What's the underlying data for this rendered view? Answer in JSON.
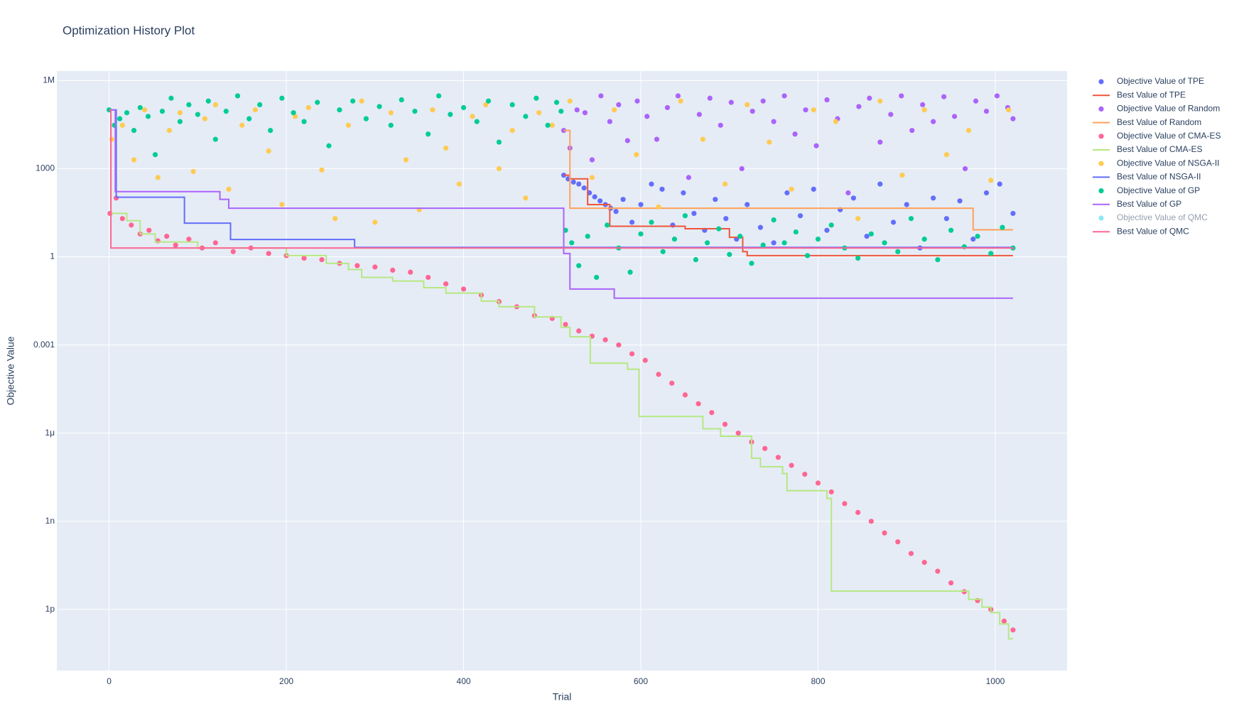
{
  "chart_data": {
    "type": "scatter",
    "title": "Optimization History Plot",
    "x_label": "Trial",
    "y_label": "Objective Value",
    "log_y": true,
    "grid": true,
    "legend": "right",
    "xlim": [
      -59,
      1081
    ],
    "xticks": [
      0,
      200,
      400,
      600,
      800,
      1000
    ],
    "ylim": [
      8.3e-15,
      2100000
    ],
    "yticks": [
      {
        "value": 1e-12,
        "label": "1p"
      },
      {
        "value": 1e-09,
        "label": "1n"
      },
      {
        "value": 1e-06,
        "label": "1μ"
      },
      0.001,
      1,
      1000,
      {
        "value": 1000000,
        "label": "1M"
      }
    ],
    "series": [
      {
        "name": "Objective Value of TPE",
        "mode": "markers",
        "color": "#636efa",
        "x": [
          513,
          518,
          524,
          530,
          536,
          542,
          548,
          554,
          560,
          566,
          572,
          580,
          590,
          600,
          612,
          624,
          636,
          648,
          660,
          672,
          684,
          696,
          708,
          720,
          735,
          750,
          765,
          780,
          795,
          810,
          825,
          840,
          855,
          870,
          885,
          900,
          915,
          930,
          945,
          960,
          975,
          990,
          1005,
          1020
        ],
        "values": [
          600,
          450,
          350,
          300,
          220,
          150,
          110,
          80,
          60,
          45,
          35,
          90,
          15,
          60,
          300,
          200,
          12,
          150,
          30,
          8,
          90,
          20,
          4,
          60,
          10,
          3,
          150,
          25,
          200,
          8,
          40,
          100,
          5,
          300,
          15,
          60,
          2,
          100,
          20,
          80,
          4,
          150,
          300,
          30
        ]
      },
      {
        "name": "Best Value of TPE",
        "mode": "lines",
        "color": "#ef553b",
        "x": [
          513,
          520,
          540,
          565,
          650,
          700,
          715,
          720,
          1020
        ],
        "values": [
          600,
          450,
          60,
          11,
          9,
          4.6,
          1.5,
          1.1,
          1.1
        ]
      },
      {
        "name": "Objective Value of Random",
        "mode": "markers",
        "color": "#ab63fa",
        "x": [
          513,
          520,
          528,
          537,
          545,
          555,
          565,
          575,
          585,
          596,
          607,
          618,
          630,
          642,
          654,
          666,
          678,
          690,
          702,
          714,
          726,
          738,
          750,
          762,
          774,
          786,
          798,
          810,
          822,
          834,
          846,
          858,
          870,
          882,
          894,
          906,
          918,
          930,
          942,
          954,
          966,
          978,
          990,
          1002,
          1014,
          1020
        ],
        "values": [
          20000,
          5000,
          100000,
          80000,
          2000,
          300000,
          40000,
          150000,
          9000,
          200000,
          60000,
          10000,
          120000,
          300000,
          500,
          70000,
          250000,
          30000,
          180000,
          1000,
          90000,
          200000,
          40000,
          300000,
          15000,
          100000,
          6000,
          220000,
          50000,
          150,
          130000,
          250000,
          8000,
          70000,
          300000,
          20000,
          150000,
          40000,
          280000,
          60000,
          1000,
          200000,
          90000,
          300000,
          120000,
          50000
        ]
      },
      {
        "name": "Best Value of Random",
        "mode": "lines",
        "color": "#ffa15a",
        "x": [
          513,
          520,
          975,
          1020
        ],
        "values": [
          20000,
          45,
          8.3,
          8.3
        ]
      },
      {
        "name": "Objective Value of CMA-ES",
        "mode": "markers",
        "color": "#ff6692",
        "x": [
          1,
          8,
          15,
          25,
          35,
          45,
          55,
          65,
          75,
          90,
          105,
          120,
          140,
          160,
          180,
          200,
          220,
          240,
          260,
          280,
          300,
          320,
          340,
          360,
          380,
          400,
          420,
          440,
          460,
          480,
          500,
          515,
          530,
          545,
          560,
          575,
          590,
          605,
          620,
          635,
          650,
          665,
          680,
          695,
          710,
          725,
          740,
          755,
          770,
          785,
          800,
          815,
          830,
          845,
          860,
          875,
          890,
          905,
          920,
          935,
          950,
          965,
          980,
          995,
          1010,
          1020
        ],
        "values": [
          30,
          100,
          20,
          12,
          6,
          8,
          3.5,
          5,
          2.5,
          4,
          2,
          3,
          1.5,
          2,
          1.3,
          1.1,
          0.9,
          0.8,
          0.6,
          0.5,
          0.45,
          0.35,
          0.3,
          0.2,
          0.12,
          0.08,
          0.05,
          0.03,
          0.02,
          0.01,
          0.008,
          0.005,
          0.003,
          0.002,
          0.0015,
          0.001,
          0.0005,
          0.0003,
          0.0001,
          5e-05,
          2e-05,
          1e-05,
          5e-06,
          2e-06,
          1e-06,
          5e-07,
          3e-07,
          1.5e-07,
          8e-08,
          4e-08,
          2e-08,
          1e-08,
          4e-09,
          2e-09,
          1e-09,
          4e-10,
          2e-10,
          8e-11,
          4e-11,
          2e-11,
          8e-12,
          4e-12,
          2e-12,
          1e-12,
          4e-13,
          2e-13
        ]
      },
      {
        "name": "Best Value of CMA-ES",
        "mode": "lines",
        "color": "#b6e880",
        "x": [
          0,
          2,
          20,
          35,
          52,
          100,
          200,
          245,
          270,
          285,
          320,
          355,
          380,
          420,
          440,
          480,
          510,
          520,
          543,
          585,
          598,
          670,
          690,
          725,
          735,
          760,
          765,
          810,
          815,
          970,
          985,
          995,
          1005,
          1015,
          1020
        ],
        "values": [
          100000,
          30,
          17,
          6,
          3.2,
          2,
          1.1,
          0.6,
          0.37,
          0.2,
          0.15,
          0.089,
          0.058,
          0.031,
          0.02,
          0.009,
          0.004,
          0.0019,
          0.00024,
          0.00015,
          3.7e-06,
          1.4e-06,
          7.8e-07,
          1.4e-07,
          7.2e-08,
          4.2e-08,
          1.1e-08,
          6e-09,
          4.2e-12,
          2.2e-12,
          1.2e-12,
          7.8e-13,
          3.2e-13,
          1e-13,
          1e-13
        ]
      },
      {
        "name": "Objective Value of NSGA-II",
        "mode": "markers",
        "color": "#fecb52",
        "x": [
          3,
          15,
          28,
          40,
          55,
          68,
          80,
          95,
          108,
          120,
          135,
          150,
          165,
          180,
          195,
          210,
          225,
          240,
          255,
          270,
          285,
          300,
          318,
          335,
          350,
          365,
          380,
          395,
          410,
          425,
          440,
          455,
          470,
          485,
          500,
          520,
          545,
          570,
          595,
          620,
          645,
          670,
          695,
          720,
          745,
          770,
          795,
          820,
          845,
          870,
          895,
          920,
          945,
          970,
          995,
          1015
        ],
        "values": [
          10000,
          30000,
          2000,
          100000,
          500,
          20000,
          80000,
          800,
          50000,
          150000,
          200,
          30000,
          100000,
          4000,
          60,
          60000,
          120000,
          900,
          20,
          30000,
          200000,
          15,
          80000,
          2000,
          40,
          100000,
          5000,
          300,
          60000,
          150000,
          1000,
          20000,
          100,
          80000,
          30000,
          200000,
          500,
          100000,
          3000,
          50,
          200000,
          10000,
          300,
          150000,
          8000,
          200,
          100000,
          40000,
          20,
          200000,
          600,
          100000,
          3000,
          20000,
          400,
          100000
        ]
      },
      {
        "name": "Best Value of NSGA-II",
        "mode": "lines",
        "color": "#636efa",
        "x": [
          0,
          8,
          85,
          137,
          277,
          1020
        ],
        "values": [
          100000,
          107,
          14,
          3.9,
          2.1,
          2.1
        ]
      },
      {
        "name": "Objective Value of GP",
        "mode": "markers",
        "color": "#00cc96",
        "x": [
          0,
          6,
          12,
          20,
          28,
          35,
          44,
          52,
          60,
          70,
          80,
          90,
          100,
          112,
          120,
          132,
          145,
          158,
          170,
          182,
          195,
          208,
          220,
          235,
          248,
          260,
          275,
          290,
          305,
          318,
          330,
          345,
          360,
          372,
          385,
          400,
          415,
          428,
          440,
          455,
          470,
          482,
          495,
          505,
          510,
          515,
          522,
          530,
          540,
          550,
          562,
          575,
          588,
          600,
          612,
          625,
          638,
          650,
          662,
          675,
          688,
          700,
          712,
          725,
          738,
          750,
          762,
          775,
          788,
          800,
          815,
          830,
          845,
          860,
          875,
          890,
          905,
          920,
          935,
          950,
          965,
          980,
          995,
          1008,
          1020
        ],
        "values": [
          100000,
          30000,
          50000,
          80000,
          20000,
          120000,
          60000,
          3000,
          90000,
          250000,
          40000,
          150000,
          70000,
          200000,
          10000,
          90000,
          300000,
          50000,
          150000,
          20000,
          250000,
          80000,
          40000,
          180000,
          6000,
          100000,
          200000,
          50000,
          130000,
          30000,
          220000,
          90000,
          15000,
          300000,
          70000,
          120000,
          40000,
          200000,
          8000,
          150000,
          60000,
          250000,
          30000,
          180000,
          90000,
          8,
          3,
          0.5,
          5,
          0.2,
          12,
          2,
          0.3,
          6,
          15,
          1.5,
          4,
          25,
          0.8,
          3,
          9,
          1.2,
          5,
          0.6,
          2.5,
          18,
          3,
          7,
          1.1,
          4,
          12,
          2,
          0.9,
          6,
          3,
          1.5,
          20,
          4,
          0.8,
          8,
          2.2,
          5,
          1.3,
          10,
          2
        ]
      },
      {
        "name": "Best Value of GP",
        "mode": "lines",
        "color": "#ab63fa",
        "x": [
          0,
          7,
          125,
          135,
          513,
          520,
          570,
          1020
        ],
        "values": [
          100000,
          165,
          90,
          45,
          1.3,
          0.08,
          0.039,
          0.039
        ]
      },
      {
        "name": "Objective Value of QMC",
        "mode": "markers",
        "color": "#19d3f3",
        "visible": "legendonly"
      },
      {
        "name": "Best Value of QMC",
        "mode": "lines",
        "color": "#ff6692",
        "x": [
          0,
          2,
          1020
        ],
        "values": [
          100000,
          2,
          1.8
        ]
      }
    ]
  }
}
